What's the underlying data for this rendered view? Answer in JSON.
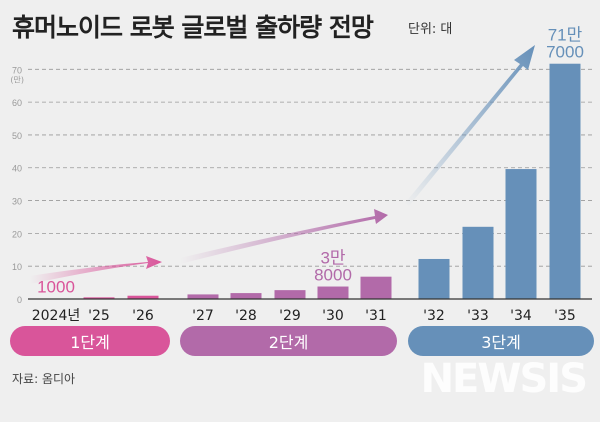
{
  "title": "휴머노이드 로봇 글로벌 출하량 전망",
  "unit": "단위: 대",
  "source": "자료: 옴디아",
  "watermark": "뉴시스",
  "stages": [
    {
      "label": "1단계",
      "color": "#d9559a"
    },
    {
      "label": "2단계",
      "color": "#b26aa9"
    },
    {
      "label": "3단계",
      "color": "#6690b9"
    }
  ],
  "chart_data": {
    "type": "bar",
    "categories": [
      "2024년",
      "'25",
      "'26",
      "'27",
      "'28",
      "'29",
      "'30",
      "'31",
      "'32",
      "'33",
      "'34",
      "'35"
    ],
    "values": [
      0.1,
      0.5,
      1.0,
      1.4,
      1.8,
      2.7,
      3.8,
      6.8,
      12.2,
      22.0,
      39.6,
      71.7
    ],
    "stage_of_bar": [
      0,
      0,
      0,
      1,
      1,
      1,
      1,
      1,
      2,
      2,
      2,
      2
    ],
    "ylim": [
      0,
      70
    ],
    "yticks": [
      "0",
      "10",
      "20",
      "30",
      "40",
      "50",
      "60",
      "70"
    ],
    "ylabel_unit": "(만)",
    "grid": true,
    "annotations": [
      {
        "index": 0,
        "lines": [
          "1000"
        ]
      },
      {
        "index": 6,
        "lines": [
          "3만",
          "8000"
        ]
      },
      {
        "index": 11,
        "lines": [
          "71만",
          "7000"
        ]
      }
    ]
  }
}
